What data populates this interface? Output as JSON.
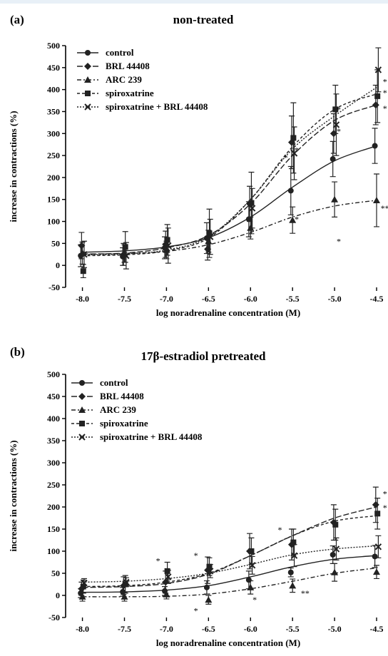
{
  "chart_data": [
    {
      "type": "line",
      "panel": "(a)",
      "title": "non-treated",
      "xlabel": "log noradrenaline concentration (M)",
      "ylabel": "increase in contractions (%)",
      "xlim": [
        -8.2,
        -4.5
      ],
      "ylim": [
        -50,
        500
      ],
      "xticks": [
        -8.0,
        -7.5,
        -7.0,
        -6.5,
        -6.0,
        -5.5,
        -5.0,
        -4.5
      ],
      "yticks": [
        -50,
        0,
        50,
        100,
        150,
        200,
        250,
        300,
        350,
        400,
        450,
        500
      ],
      "xtick_labels": [
        "-8.0",
        "-7.5",
        "-7.0",
        "-6.5",
        "-6.0",
        "-5.5",
        "-5.0",
        "-4.5"
      ],
      "ytick_labels": [
        "-50",
        "0",
        "50",
        "100",
        "150",
        "200",
        "250",
        "300",
        "350",
        "400",
        "450",
        "500"
      ],
      "legend_position": "top-left",
      "series": [
        {
          "name": "control",
          "marker": "circle",
          "dash": "solid",
          "x": [
            -8,
            -7.5,
            -7,
            -6.5,
            -6,
            -5.5,
            -5,
            -4.5
          ],
          "y": [
            22,
            20,
            40,
            62,
            105,
            170,
            242,
            272
          ],
          "err": [
            25,
            20,
            25,
            35,
            40,
            55,
            40,
            40
          ],
          "fit": [
            30,
            33,
            42,
            63,
            110,
            178,
            238,
            272
          ]
        },
        {
          "name": "BRL 44408",
          "marker": "diamond",
          "dash": "long",
          "x": [
            -8,
            -7.5,
            -7,
            -6.5,
            -6,
            -5.5,
            -5,
            -4.5
          ],
          "y": [
            45,
            25,
            48,
            37,
            140,
            280,
            300,
            365
          ],
          "err": [
            30,
            25,
            30,
            25,
            40,
            60,
            45,
            45
          ],
          "fit": [
            26,
            28,
            40,
            68,
            140,
            250,
            330,
            365
          ]
        },
        {
          "name": "ARC 239",
          "marker": "triangle",
          "dash": "dashdot",
          "x": [
            -8,
            -7.5,
            -7,
            -6.5,
            -6,
            -5.5,
            -5,
            -4.5
          ],
          "y": [
            28,
            27,
            35,
            55,
            85,
            103,
            150,
            148
          ],
          "err": [
            25,
            20,
            20,
            25,
            25,
            30,
            40,
            60
          ],
          "fit": [
            25,
            27,
            32,
            47,
            75,
            110,
            135,
            148
          ]
        },
        {
          "name": "spiroxatrine",
          "marker": "square",
          "dash": "dashed",
          "x": [
            -8,
            -7.5,
            -7,
            -6.5,
            -6,
            -5.5,
            -5,
            -4.5
          ],
          "y": [
            -13,
            42,
            58,
            73,
            142,
            290,
            355,
            385
          ],
          "err": [
            15,
            35,
            35,
            55,
            70,
            80,
            55,
            60
          ],
          "fit": [
            22,
            24,
            33,
            62,
            150,
            270,
            355,
            390
          ]
        },
        {
          "name": "spiroxatrine + BRL 44408",
          "marker": "cross",
          "dash": "dotted",
          "x": [
            -8,
            -7.5,
            -7,
            -6.5,
            -6,
            -5.5,
            -5,
            -4.5
          ],
          "y": [
            25,
            22,
            45,
            65,
            130,
            255,
            320,
            445
          ],
          "err": [
            30,
            30,
            40,
            40,
            45,
            60,
            70,
            50
          ],
          "fit": [
            24,
            26,
            35,
            65,
            150,
            265,
            340,
            405
          ]
        }
      ],
      "annotations": [
        {
          "text": "*",
          "x": -5.45,
          "y": 105
        },
        {
          "text": "*",
          "x": -5.45,
          "y": 262
        },
        {
          "text": "*",
          "x": -5.58,
          "y": 245
        },
        {
          "text": "*",
          "x": -4.95,
          "y": 55
        },
        {
          "text": "*",
          "x": -4.95,
          "y": 305
        },
        {
          "text": "*",
          "x": -4.95,
          "y": 355
        },
        {
          "text": "*",
          "x": -4.4,
          "y": 393
        },
        {
          "text": "*",
          "x": -4.4,
          "y": 357
        },
        {
          "text": "*",
          "x": -4.4,
          "y": 418
        },
        {
          "text": "**",
          "x": -4.4,
          "y": 130
        }
      ]
    },
    {
      "type": "line",
      "panel": "(b)",
      "title": "17β-estradiol pretreated",
      "xlabel": "log noradrenaline concentration (M)",
      "ylabel": "increase in contractions (%)",
      "xlim": [
        -8.2,
        -4.5
      ],
      "ylim": [
        -50,
        500
      ],
      "xticks": [
        -8.0,
        -7.5,
        -7.0,
        -6.5,
        -6.0,
        -5.5,
        -5.0,
        -4.5
      ],
      "yticks": [
        -50,
        0,
        50,
        100,
        150,
        200,
        250,
        300,
        350,
        400,
        450,
        500
      ],
      "xtick_labels": [
        "-8.0",
        "-7.5",
        "-7.0",
        "-6.5",
        "-6.0",
        "-5.5",
        "-5.0",
        "-4.5"
      ],
      "ytick_labels": [
        "-50",
        "0",
        "50",
        "100",
        "150",
        "200",
        "250",
        "300",
        "350",
        "400",
        "450",
        "500"
      ],
      "legend_position": "top-left",
      "series": [
        {
          "name": "control",
          "marker": "circle",
          "dash": "solid",
          "x": [
            -8,
            -7.5,
            -7,
            -6.5,
            -6,
            -5.5,
            -5,
            -4.5
          ],
          "y": [
            5,
            8,
            10,
            18,
            35,
            52,
            92,
            88
          ],
          "err": [
            10,
            10,
            10,
            15,
            20,
            10,
            20,
            25
          ],
          "fit": [
            7,
            8,
            12,
            22,
            42,
            65,
            82,
            90
          ]
        },
        {
          "name": "BRL 44408",
          "marker": "diamond",
          "dash": "long",
          "x": [
            -8,
            -7.5,
            -7,
            -6.5,
            -6,
            -5.5,
            -5,
            -4.5
          ],
          "y": [
            15,
            22,
            30,
            57,
            100,
            115,
            165,
            205
          ],
          "err": [
            15,
            20,
            25,
            30,
            40,
            35,
            40,
            40
          ],
          "fit": [
            18,
            20,
            27,
            48,
            90,
            135,
            175,
            200
          ]
        },
        {
          "name": "ARC 239",
          "marker": "triangle",
          "dash": "dashdot",
          "x": [
            -8,
            -7.5,
            -7,
            -6.5,
            -6,
            -5.5,
            -5,
            -4.5
          ],
          "y": [
            -3,
            -3,
            2,
            -10,
            18,
            22,
            52,
            53
          ],
          "err": [
            10,
            10,
            10,
            10,
            15,
            15,
            20,
            15
          ],
          "fit": [
            -3,
            -3,
            -2,
            3,
            15,
            32,
            50,
            62
          ]
        },
        {
          "name": "spiroxatrine",
          "marker": "square",
          "dash": "dashed",
          "x": [
            -8,
            -7.5,
            -7,
            -6.5,
            -6,
            -5.5,
            -5,
            -4.5
          ],
          "y": [
            20,
            25,
            55,
            65,
            100,
            120,
            160,
            185
          ],
          "err": [
            15,
            20,
            20,
            20,
            30,
            30,
            35,
            35
          ],
          "fit": [
            20,
            22,
            30,
            50,
            90,
            135,
            168,
            180
          ]
        },
        {
          "name": "spiroxatrine + BRL 44408",
          "marker": "cross",
          "dash": "dotted",
          "x": [
            -8,
            -7.5,
            -7,
            -6.5,
            -6,
            -5.5,
            -5,
            -4.5
          ],
          "y": [
            28,
            30,
            42,
            55,
            68,
            90,
            105,
            110
          ],
          "err": [
            10,
            10,
            15,
            15,
            20,
            25,
            25,
            25
          ],
          "fit": [
            30,
            32,
            38,
            50,
            70,
            92,
            105,
            112
          ]
        }
      ],
      "annotations": [
        {
          "text": "*",
          "x": -7.1,
          "y": 78
        },
        {
          "text": "*",
          "x": -6.65,
          "y": 90
        },
        {
          "text": "*",
          "x": -6.65,
          "y": -35
        },
        {
          "text": "*",
          "x": -5.95,
          "y": -10
        },
        {
          "text": "*",
          "x": -5.65,
          "y": 148
        },
        {
          "text": "**",
          "x": -5.35,
          "y": 5
        },
        {
          "text": "*",
          "x": -4.4,
          "y": 230
        },
        {
          "text": "*",
          "x": -4.4,
          "y": 198
        }
      ]
    }
  ]
}
